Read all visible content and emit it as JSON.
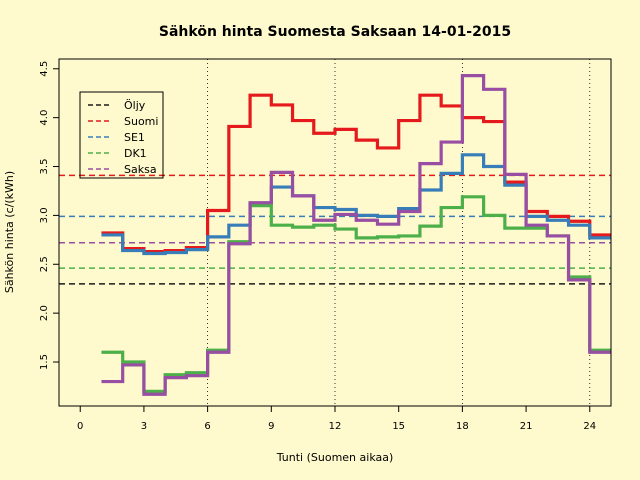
{
  "chart_data": {
    "type": "line",
    "step": true,
    "title": "Sähkön hinta Suomesta Saksaan 14-01-2015",
    "xlabel": "Tunti (Suomen aikaa)",
    "ylabel": "Sähkön hinta (c/(kWh)",
    "xlim": [
      -1,
      25
    ],
    "ylim": [
      1.05,
      4.6
    ],
    "x_ticks": [
      0,
      3,
      6,
      9,
      12,
      15,
      18,
      21,
      24
    ],
    "y_ticks": [
      1.5,
      2.0,
      2.5,
      3.0,
      3.5,
      4.0,
      4.5
    ],
    "vertical_lines": [
      6,
      12,
      18,
      24
    ],
    "legend_position": "top-left",
    "series": [
      {
        "name": "Öljy",
        "color": "#1a1a1a"
      },
      {
        "name": "Suomi",
        "color": "#e41a1c",
        "values": [
          2.82,
          2.66,
          2.63,
          2.64,
          2.67,
          3.05,
          3.91,
          4.23,
          4.13,
          3.97,
          3.84,
          3.88,
          3.77,
          3.69,
          3.97,
          4.23,
          4.12,
          4.0,
          3.96,
          3.34,
          3.04,
          2.99,
          2.94,
          2.8
        ]
      },
      {
        "name": "SE1",
        "color": "#377eb8",
        "values": [
          2.8,
          2.64,
          2.61,
          2.62,
          2.65,
          2.78,
          2.9,
          3.12,
          3.29,
          3.2,
          3.08,
          3.06,
          3.0,
          2.99,
          3.07,
          3.26,
          3.43,
          3.62,
          3.5,
          3.31,
          2.99,
          2.95,
          2.9,
          2.77
        ]
      },
      {
        "name": "DK1",
        "color": "#4daf4a",
        "values": [
          1.6,
          1.5,
          1.2,
          1.37,
          1.39,
          1.62,
          2.73,
          3.1,
          2.9,
          2.88,
          2.9,
          2.86,
          2.77,
          2.78,
          2.79,
          2.89,
          3.08,
          3.19,
          3.0,
          2.87,
          2.87,
          2.79,
          2.37,
          1.62
        ]
      },
      {
        "name": "Saksa",
        "color": "#984ea3",
        "values": [
          1.3,
          1.47,
          1.17,
          1.34,
          1.36,
          1.6,
          2.71,
          3.13,
          3.44,
          3.2,
          2.95,
          3.01,
          2.95,
          2.91,
          3.04,
          3.53,
          3.75,
          4.43,
          4.29,
          3.42,
          2.9,
          2.79,
          2.34,
          1.6
        ]
      }
    ],
    "reference_lines": [
      {
        "series": "Öljy",
        "y": 2.3,
        "color": "#1a1a1a"
      },
      {
        "series": "Suomi",
        "y": 3.41,
        "color": "#e41a1c"
      },
      {
        "series": "SE1",
        "y": 2.99,
        "color": "#377eb8"
      },
      {
        "series": "DK1",
        "y": 2.46,
        "color": "#4daf4a"
      },
      {
        "series": "Saksa",
        "y": 2.72,
        "color": "#984ea3"
      }
    ]
  }
}
